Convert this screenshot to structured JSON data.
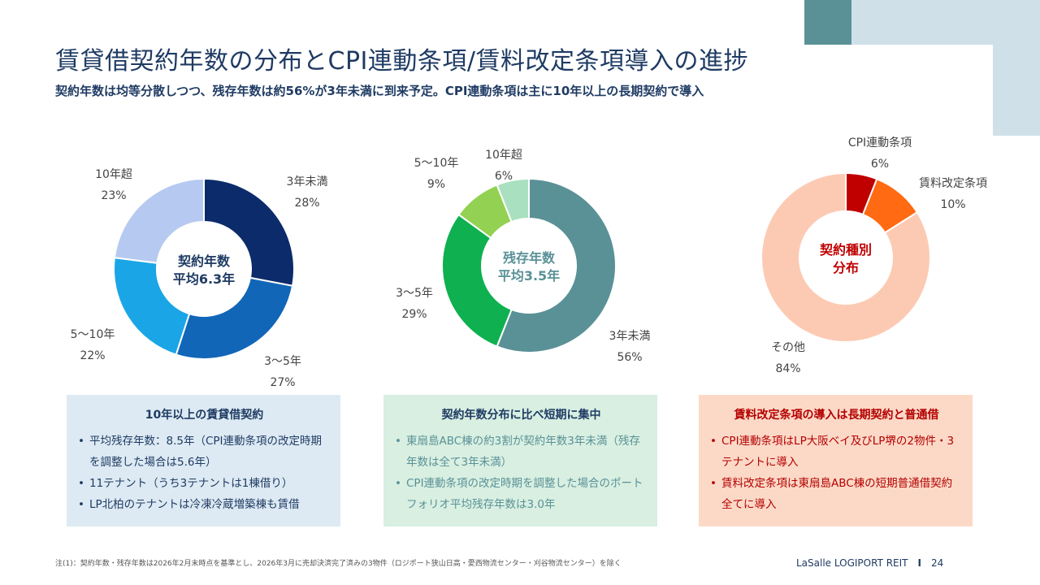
{
  "title": "賃貸借契約年数の分布とCPI連動条項/賃料改定条項導入の進捗",
  "subtitle": "契約年数は均等分散しつつ、残存年数は約56%が3年未満に到来予定。CPI連動条項は主に10年以上の長期契約で導入",
  "chart_data": [
    {
      "type": "pie",
      "name": "contract-years",
      "center_label": [
        "契約年数",
        "平均6.3年"
      ],
      "center_color": "#1f3b63",
      "slices": [
        {
          "label": "3年未満",
          "value": 28,
          "pct": "28%",
          "color": "#0c2b6b"
        },
        {
          "label": "3〜5年",
          "value": 27,
          "pct": "27%",
          "color": "#1166b8"
        },
        {
          "label": "5〜10年",
          "value": 22,
          "pct": "22%",
          "color": "#1aa6e6"
        },
        {
          "label": "10年超",
          "value": 23,
          "pct": "23%",
          "color": "#b6c9f1"
        }
      ]
    },
    {
      "type": "pie",
      "name": "remaining-years",
      "center_label": [
        "残存年数",
        "平均3.5年"
      ],
      "center_color": "#5a9197",
      "slices": [
        {
          "label": "3年未満",
          "value": 56,
          "pct": "56%",
          "color": "#5a9197"
        },
        {
          "label": "3〜5年",
          "value": 29,
          "pct": "29%",
          "color": "#0fb04f"
        },
        {
          "label": "5〜10年",
          "value": 9,
          "pct": "9%",
          "color": "#93d152"
        },
        {
          "label": "10年超",
          "value": 6,
          "pct": "6%",
          "color": "#a9e0c0"
        }
      ]
    },
    {
      "type": "pie",
      "name": "contract-type",
      "center_label": [
        "契約種別",
        "分布"
      ],
      "center_color": "#c00000",
      "slices": [
        {
          "label": "CPI連動条項",
          "value": 6,
          "pct": "6%",
          "color": "#c00000"
        },
        {
          "label": "賃料改定条項",
          "value": 10,
          "pct": "10%",
          "color": "#ff6a13"
        },
        {
          "label": "その他",
          "value": 84,
          "pct": "84%",
          "color": "#fccab3"
        }
      ]
    }
  ],
  "boxes": {
    "box1": {
      "title": "10年以上の賃貸借契約",
      "items": [
        "平均残存年数：8.5年（CPI連動条項の改定時期を調整した場合は5.6年）",
        "11テナント（うち3テナントは1棟借り）",
        "LP北柏のテナントは冷凍冷蔵増築棟も賃借"
      ]
    },
    "box2": {
      "title": "契約年数分布に比べ短期に集中",
      "items": [
        "東扇島ABC棟の約3割が契約年数3年未満（残存年数は全て3年未満）",
        "CPI連動条項の改定時期を調整した場合のポートフォリオ平均残存年数は3.0年"
      ]
    },
    "box3": {
      "title": "賃料改定条項の導入は長期契約と普通借",
      "items": [
        "CPI連動条項はLP大阪ベイ及びLP堺の2物件・3テナントに導入",
        "賃料改定条項は東扇島ABC棟の短期普通借契約全てに導入"
      ]
    }
  },
  "footnote": "注(1)：契約年数・残存年数は2026年2月末時点を基準とし、2026年3月に売却決済完了済みの3物件（ロジポート狭山日高・愛西物流センター・刈谷物流センター）を除く",
  "brand": "LaSalle LOGIPORT REIT",
  "page_number": "24"
}
